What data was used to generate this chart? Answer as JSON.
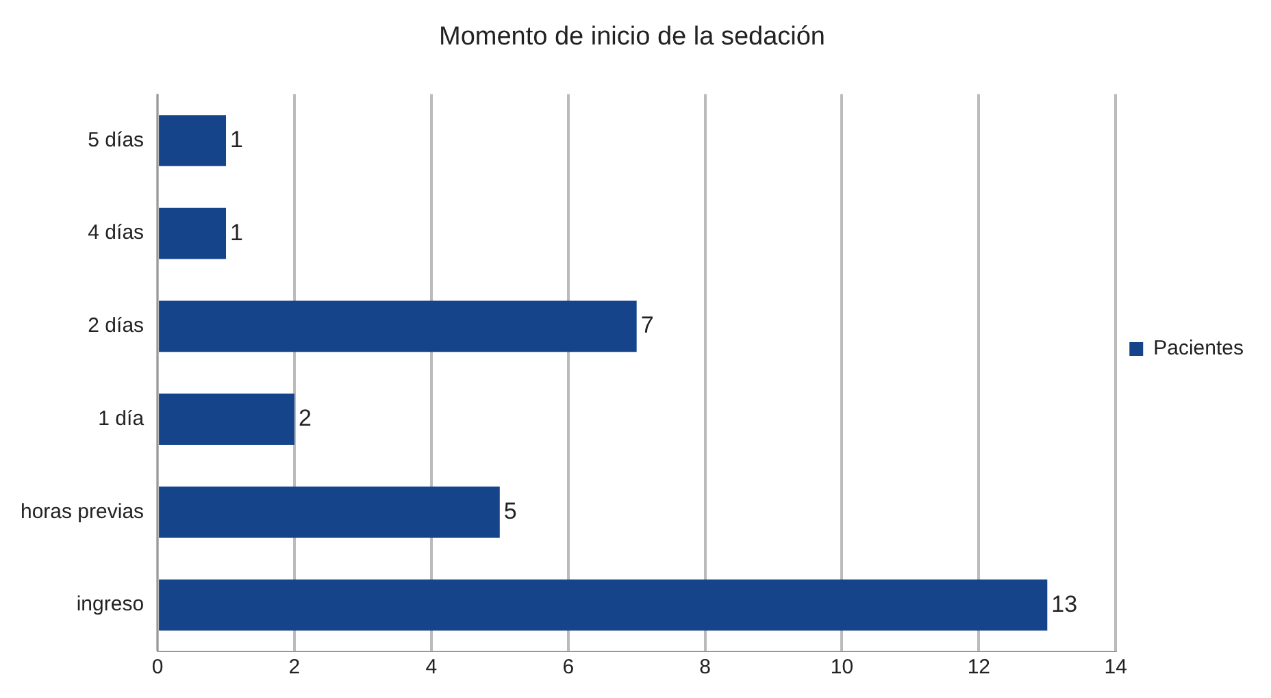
{
  "chart_data": {
    "type": "bar",
    "orientation": "horizontal",
    "title": "Momento de inicio de la sedación",
    "categories": [
      "5 días",
      "4 días",
      "2 días",
      "1 día",
      "horas previas",
      "ingreso"
    ],
    "series": [
      {
        "name": "Pacientes",
        "color": "#15448a",
        "values": [
          1,
          1,
          7,
          2,
          5,
          13
        ]
      }
    ],
    "xlim": [
      0,
      14
    ],
    "xticks": [
      0,
      2,
      4,
      6,
      8,
      10,
      12,
      14
    ],
    "grid": "x",
    "legend": "right",
    "data_labels": true
  }
}
